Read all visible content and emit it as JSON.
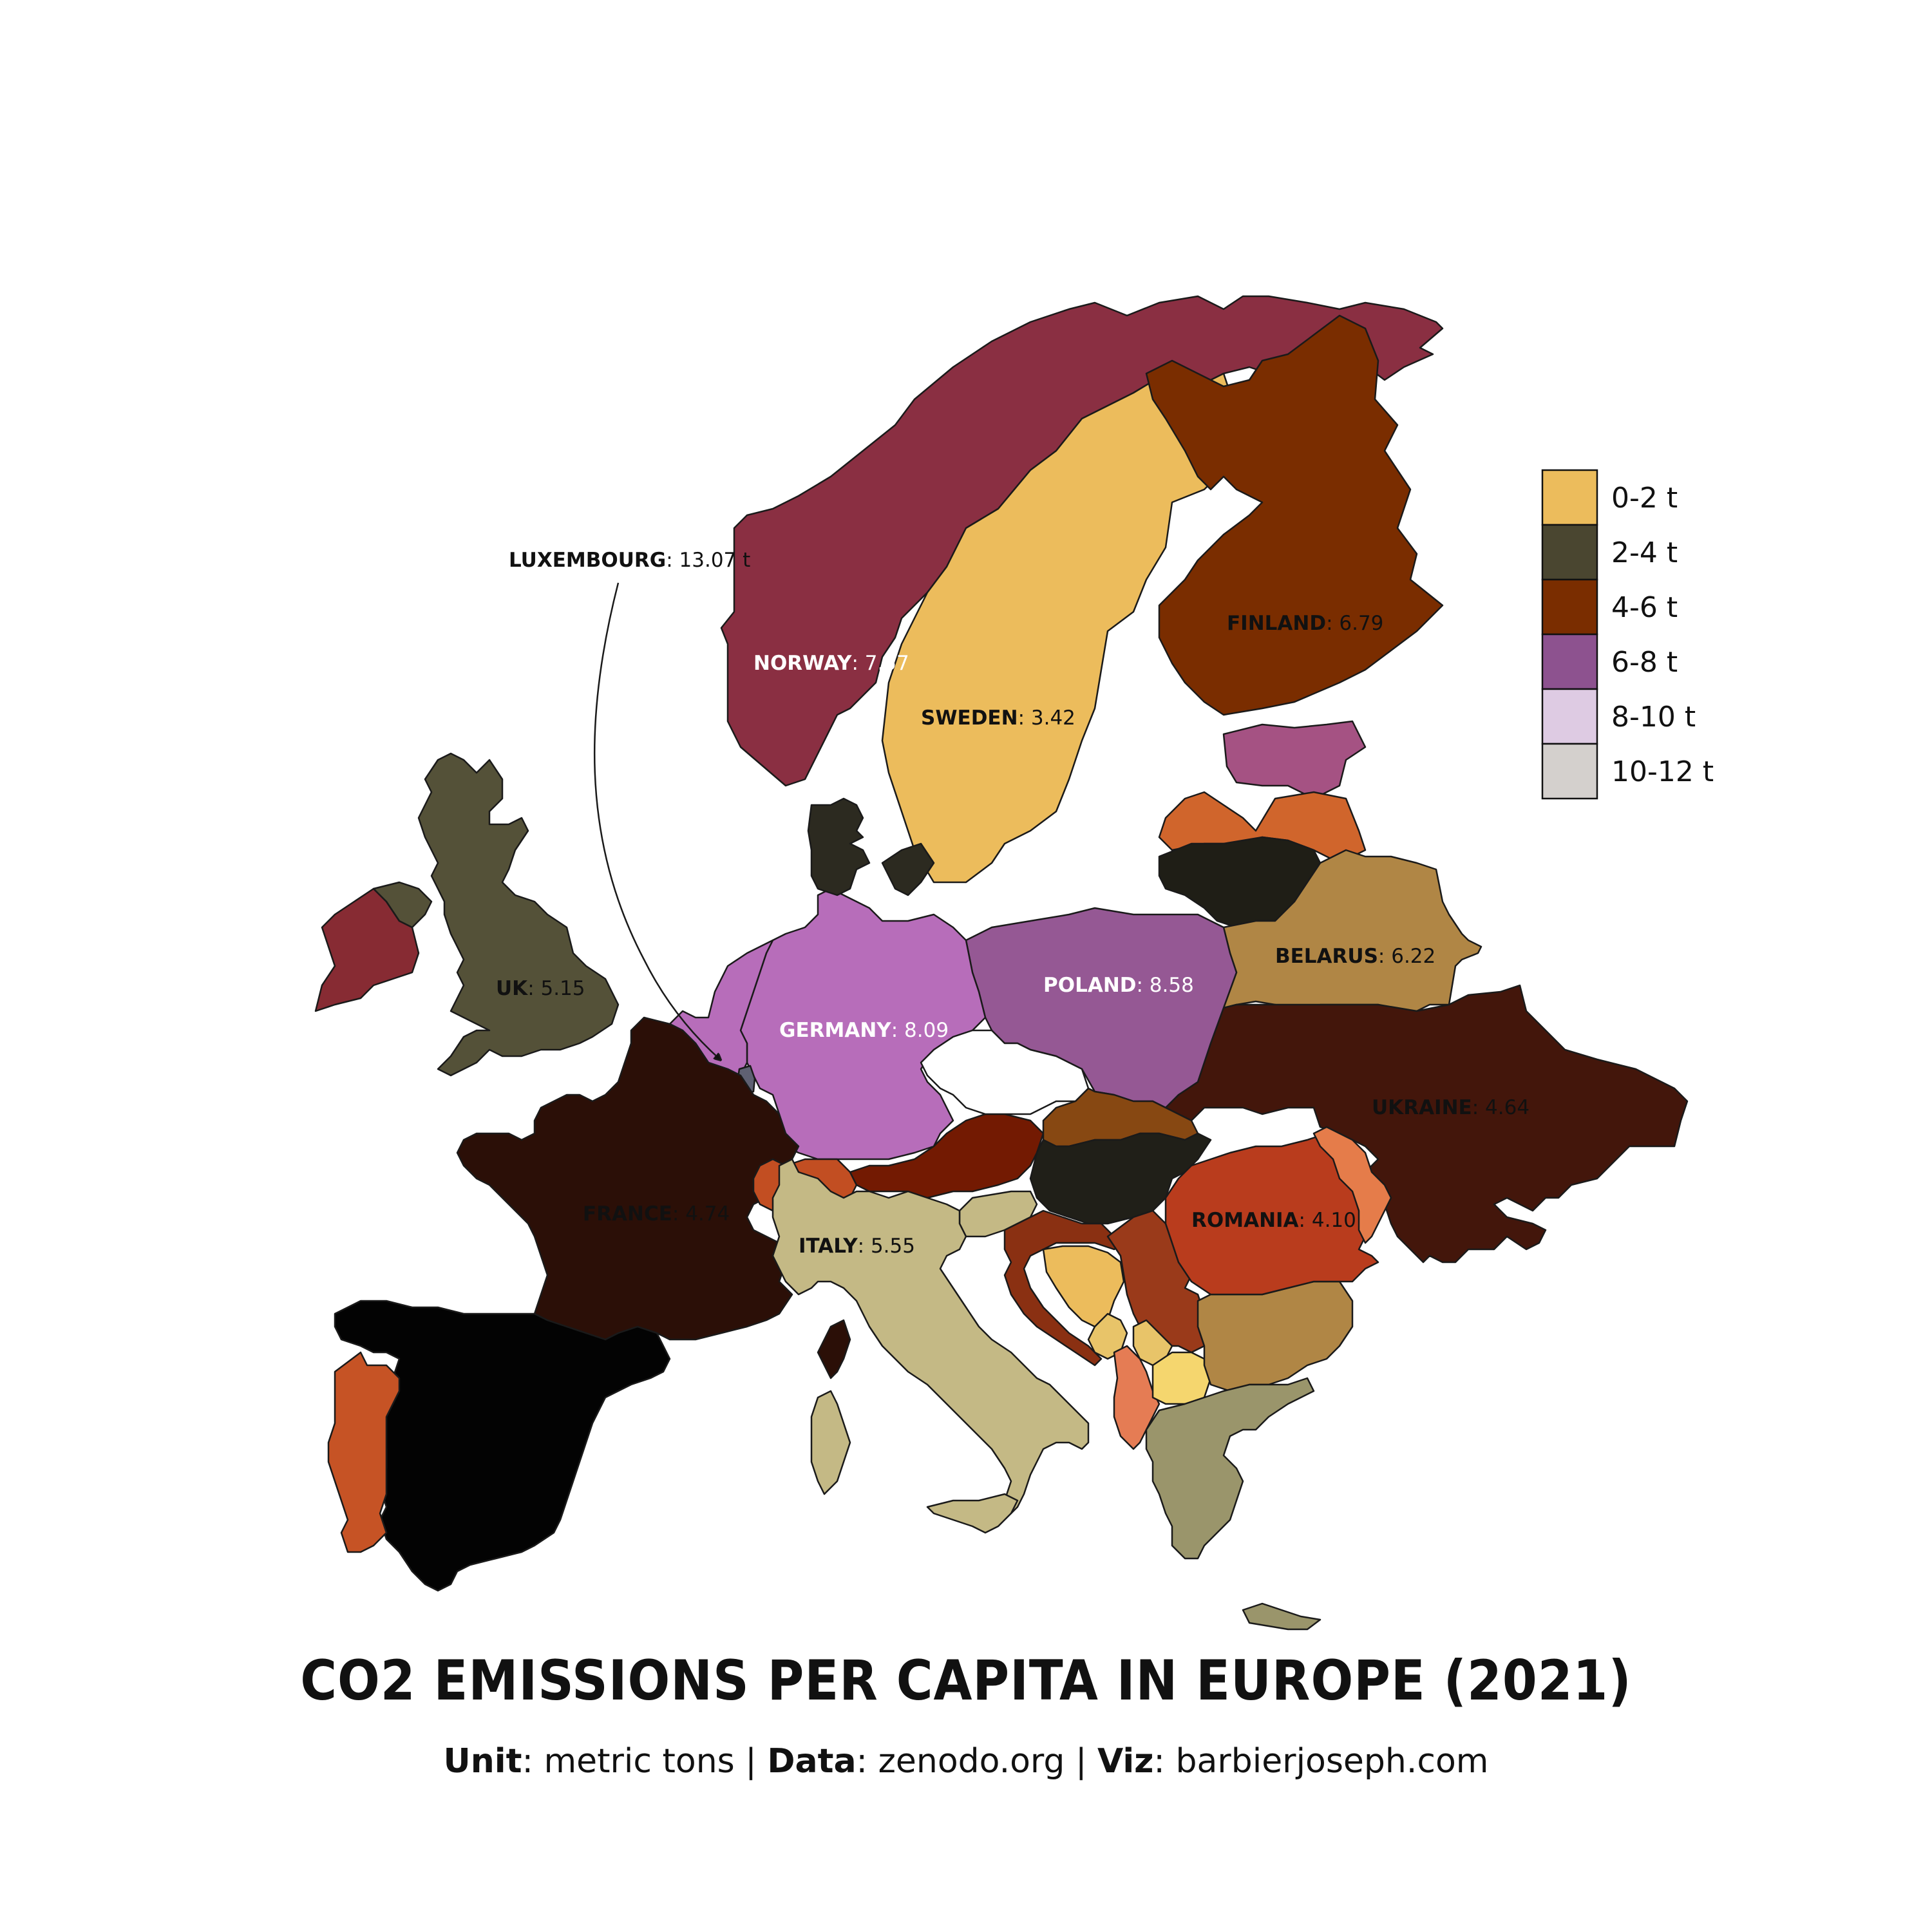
{
  "title": "CO2 EMISSIONS PER CAPITA IN EUROPE (2021)",
  "subtitle": {
    "unit_label": "Unit",
    "unit_value": "metric tons",
    "data_label": "Data",
    "data_value": "zenodo.org",
    "viz_label": "Viz",
    "viz_value": "barbierjoseph.com",
    "separator": "|"
  },
  "legend": {
    "items": [
      {
        "label": "0-2 t",
        "color": "#ecbc5c"
      },
      {
        "label": "2-4 t",
        "color": "#4a4630"
      },
      {
        "label": "4-6 t",
        "color": "#7a2d00"
      },
      {
        "label": "6-8 t",
        "color": "#8d528f"
      },
      {
        "label": "8-10 t",
        "color": "#decbe3"
      },
      {
        "label": "10-12 t",
        "color": "#d4d0cd"
      }
    ]
  },
  "labels": [
    {
      "name": "NORWAY",
      "value": ": 7.57",
      "color": "#ffffff"
    },
    {
      "name": "SWEDEN",
      "value": ": 3.42",
      "color": "#111111"
    },
    {
      "name": "FINLAND",
      "value": ": 6.79",
      "color": "#111111"
    },
    {
      "name": "UK",
      "value": ": 5.15",
      "color": "#111111"
    },
    {
      "name": "GERMANY",
      "value": ": 8.09",
      "color": "#ffffff"
    },
    {
      "name": "POLAND",
      "value": ": 8.58",
      "color": "#ffffff"
    },
    {
      "name": "BELARUS",
      "value": ": 6.22",
      "color": "#111111"
    },
    {
      "name": "UKRAINE",
      "value": ": 4.64",
      "color": "#111111"
    },
    {
      "name": "FRANCE",
      "value": ": 4.74",
      "color": "#111111"
    },
    {
      "name": "ITALY",
      "value": ": 5.55",
      "color": "#111111"
    },
    {
      "name": "ROMANIA",
      "value": ": 4.10",
      "color": "#111111"
    },
    {
      "name": "LUXEMBOURG",
      "value": ": 13.07 t",
      "color": "#111111"
    }
  ],
  "regions": [
    {
      "name": "norway",
      "color": "#8a2f42"
    },
    {
      "name": "sweden",
      "color": "#ecbc5c"
    },
    {
      "name": "finland",
      "color": "#7a2d00"
    },
    {
      "name": "estonia",
      "color": "#a55283"
    },
    {
      "name": "latvia",
      "color": "#d0652c"
    },
    {
      "name": "lithuania",
      "color": "#1f1e16"
    },
    {
      "name": "belarus",
      "color": "#b08645"
    },
    {
      "name": "ukraine",
      "color": "#43160b"
    },
    {
      "name": "poland",
      "color": "#955894"
    },
    {
      "name": "germany",
      "color": "#b76dba"
    },
    {
      "name": "benelux",
      "color": "#b76dba"
    },
    {
      "name": "luxembourg",
      "color": "#5f6173"
    },
    {
      "name": "denmark",
      "color": "#2c2a20"
    },
    {
      "name": "zealand",
      "color": "#2c2a20"
    },
    {
      "name": "uk",
      "color": "#545138"
    },
    {
      "name": "ireland",
      "color": "#872b33"
    },
    {
      "name": "northern-ireland",
      "color": "#545138"
    },
    {
      "name": "france",
      "color": "#2b0f07"
    },
    {
      "name": "corsica",
      "color": "#2b0f07"
    },
    {
      "name": "spain",
      "color": "#030303"
    },
    {
      "name": "portugal",
      "color": "#c65325"
    },
    {
      "name": "switzerland",
      "color": "#c24e22"
    },
    {
      "name": "austria",
      "color": "#731a02"
    },
    {
      "name": "czechia",
      "color": "#ffffff"
    },
    {
      "name": "slovakia",
      "color": "#874812"
    },
    {
      "name": "hungary",
      "color": "#201f18"
    },
    {
      "name": "slovenia",
      "color": "#c4b985"
    },
    {
      "name": "croatia",
      "color": "#8a3012"
    },
    {
      "name": "bosnia",
      "color": "#ecbc5c"
    },
    {
      "name": "serbia",
      "color": "#9a3a1a"
    },
    {
      "name": "montenegro",
      "color": "#e8c469"
    },
    {
      "name": "kosovo",
      "color": "#e8c469"
    },
    {
      "name": "albania",
      "color": "#e57c54"
    },
    {
      "name": "north-macedonia",
      "color": "#f5d66e"
    },
    {
      "name": "bulgaria",
      "color": "#b08645"
    },
    {
      "name": "greece",
      "color": "#9a956b"
    },
    {
      "name": "crete",
      "color": "#9a956b"
    },
    {
      "name": "romania",
      "color": "#b93c1d"
    },
    {
      "name": "moldova",
      "color": "#e57c4a"
    },
    {
      "name": "italy",
      "color": "#c4b985"
    },
    {
      "name": "sardinia",
      "color": "#c4b985"
    },
    {
      "name": "sicily",
      "color": "#c4b985"
    }
  ]
}
